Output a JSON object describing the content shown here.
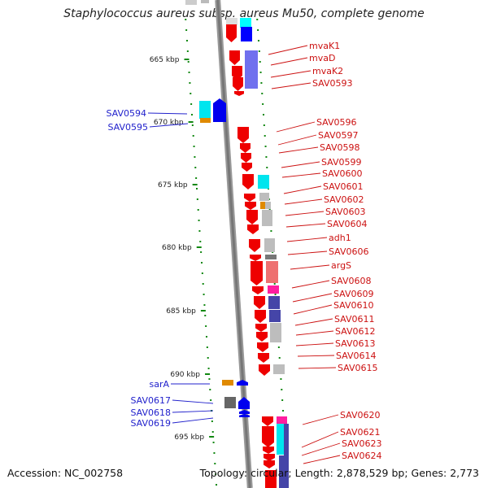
{
  "title": "Staphylococcus aureus subsp. aureus Mu50, complete genome",
  "accession": "Accession: NC_002758",
  "topology": "Topology: circular; Length: 2,878,529 bp; Genes: 2,773",
  "colors": {
    "forward_label": "#2222cc",
    "reverse_label": "#cc1111",
    "forward_feature": "#0000ee",
    "reverse_feature": "#ee0000",
    "tick": "#118811",
    "backbone": "#888888"
  },
  "scale": {
    "ticks": [
      {
        "label": "665 kbp"
      },
      {
        "label": "670 kbp"
      },
      {
        "label": "675 kbp"
      },
      {
        "label": "680 kbp"
      },
      {
        "label": "685 kbp"
      },
      {
        "label": "690 kbp"
      },
      {
        "label": "695 kbp"
      }
    ]
  },
  "forward_genes": [
    {
      "label": "SAV0594"
    },
    {
      "label": "SAV0595"
    },
    {
      "label": "sarA"
    },
    {
      "label": "SAV0617"
    },
    {
      "label": "SAV0618"
    },
    {
      "label": "SAV0619"
    }
  ],
  "reverse_genes": [
    {
      "label": "mvaK1"
    },
    {
      "label": "mvaD"
    },
    {
      "label": "mvaK2"
    },
    {
      "label": "SAV0593"
    },
    {
      "label": "SAV0596"
    },
    {
      "label": "SAV0597"
    },
    {
      "label": "SAV0598"
    },
    {
      "label": "SAV0599"
    },
    {
      "label": "SAV0600"
    },
    {
      "label": "SAV0601"
    },
    {
      "label": "SAV0602"
    },
    {
      "label": "SAV0603"
    },
    {
      "label": "SAV0604"
    },
    {
      "label": "adh1"
    },
    {
      "label": "SAV0606"
    },
    {
      "label": "argS"
    },
    {
      "label": "SAV0608"
    },
    {
      "label": "SAV0609"
    },
    {
      "label": "SAV0610"
    },
    {
      "label": "SAV0611"
    },
    {
      "label": "SAV0612"
    },
    {
      "label": "SAV0613"
    },
    {
      "label": "SAV0614"
    },
    {
      "label": "SAV0615"
    },
    {
      "label": "SAV0620"
    },
    {
      "label": "SAV0621"
    },
    {
      "label": "SAV0623"
    },
    {
      "label": "SAV0624"
    }
  ]
}
